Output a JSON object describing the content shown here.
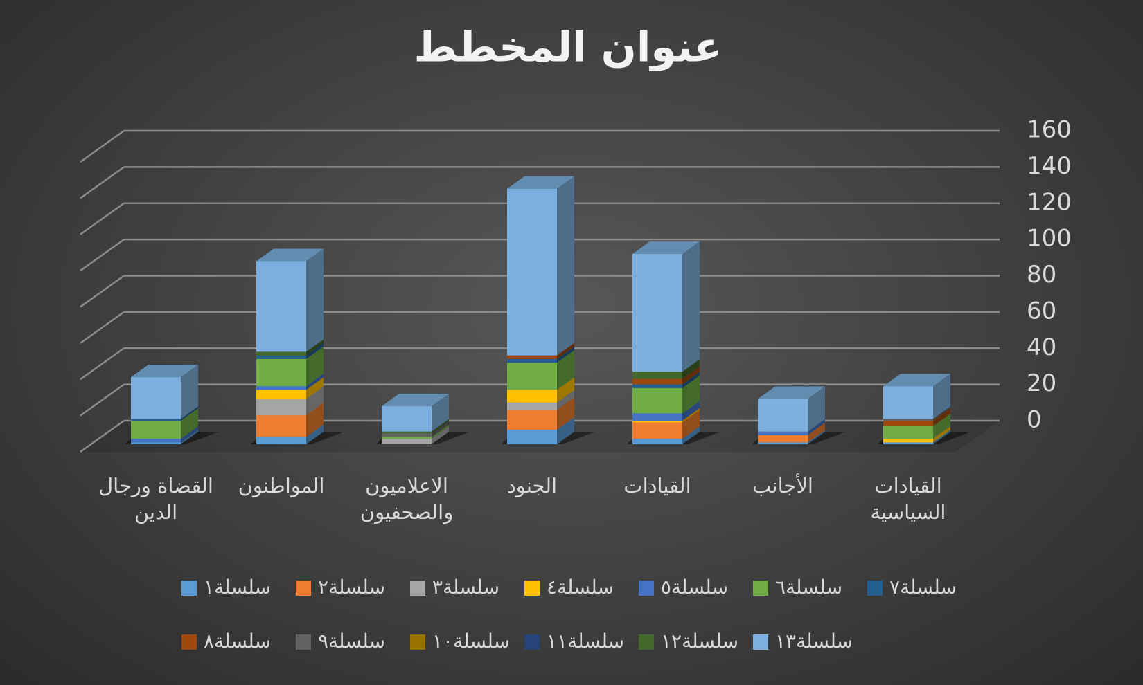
{
  "chart_data": {
    "type": "bar3d-stacked",
    "title": "عنوان المخطط",
    "categories": [
      "القيادات السياسية",
      "الأجانب",
      "القيادات",
      "الجنود",
      "الاعلاميون والصحفيون",
      "المواطنون",
      "القضاة ورجال الدين"
    ],
    "series": [
      {
        "name": "سلسلة١",
        "color": "#5b9bd5",
        "values": [
          1,
          1,
          3,
          8,
          0,
          4,
          1
        ]
      },
      {
        "name": "سلسلة٢",
        "color": "#ed7d31",
        "values": [
          0,
          4,
          9,
          11,
          0,
          12,
          0
        ]
      },
      {
        "name": "سلسلة٣",
        "color": "#a5a5a5",
        "values": [
          0,
          0,
          0,
          4,
          3,
          9,
          0
        ]
      },
      {
        "name": "سلسلة٤",
        "color": "#ffc000",
        "values": [
          2,
          0,
          1,
          7,
          0,
          5,
          0
        ]
      },
      {
        "name": "سلسلة٥",
        "color": "#4472c4",
        "values": [
          0,
          2,
          4,
          0,
          0,
          2,
          2
        ]
      },
      {
        "name": "سلسلة٦",
        "color": "#70ad47",
        "values": [
          7,
          0,
          14,
          15,
          1,
          15,
          10
        ]
      },
      {
        "name": "سلسلة٧",
        "color": "#255e91",
        "values": [
          0,
          0,
          2,
          2,
          0,
          2,
          1
        ]
      },
      {
        "name": "سلسلة٨",
        "color": "#9e480e",
        "values": [
          3,
          0,
          3,
          2,
          0,
          0,
          0
        ]
      },
      {
        "name": "سلسلة٩",
        "color": "#636363",
        "values": [
          1,
          0,
          0,
          0,
          2,
          0,
          0
        ]
      },
      {
        "name": "سلسلة١٠",
        "color": "#997300",
        "values": [
          0,
          0,
          0,
          0,
          0,
          0,
          0
        ]
      },
      {
        "name": "سلسلة١١",
        "color": "#264478",
        "values": [
          0,
          0,
          0,
          0,
          0,
          0,
          0
        ]
      },
      {
        "name": "سلسلة١٢",
        "color": "#43682b",
        "values": [
          0,
          0,
          4,
          0,
          1,
          2,
          0
        ]
      },
      {
        "name": "سلسلة١٣",
        "color": "#7cafdd",
        "values": [
          18,
          18,
          65,
          92,
          14,
          50,
          23
        ]
      }
    ],
    "ylim": [
      0,
      160
    ],
    "yticks": [
      0,
      20,
      40,
      60,
      80,
      100,
      120,
      140,
      160
    ],
    "grid": true,
    "legend": "bottom"
  }
}
